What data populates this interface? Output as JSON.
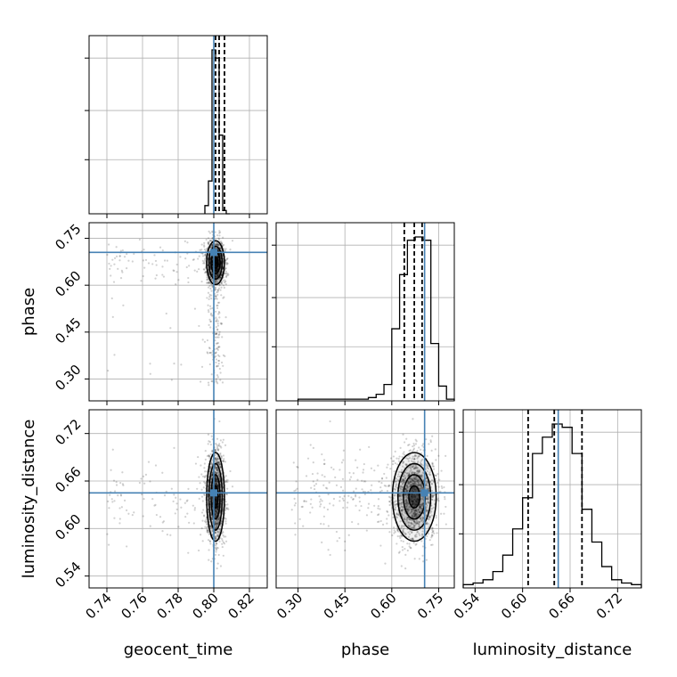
{
  "chart_data": {
    "type": "corner",
    "parameters": [
      "geocent_time",
      "phase",
      "luminosity_distance"
    ],
    "axis_labels": {
      "x": [
        "geocent_time",
        "phase",
        "luminosity_distance"
      ],
      "y": [
        "",
        "phase",
        "luminosity_distance"
      ]
    },
    "ranges": {
      "geocent_time": [
        0.73,
        0.83
      ],
      "phase": [
        0.23,
        0.8
      ],
      "luminosity_distance": [
        0.525,
        0.75
      ]
    },
    "ticks": {
      "geocent_time": [
        0.74,
        0.76,
        0.78,
        0.8,
        0.82
      ],
      "geocent_time_labels": [
        "0.74",
        "0.76",
        "0.78",
        "0.80",
        "0.82"
      ],
      "phase": [
        0.3,
        0.45,
        0.6,
        0.75
      ],
      "phase_labels": [
        "0.30",
        "0.45",
        "0.60",
        "0.75"
      ],
      "luminosity_distance": [
        0.54,
        0.6,
        0.66,
        0.72
      ],
      "luminosity_distance_labels": [
        "0.54",
        "0.60",
        "0.66",
        "0.72"
      ]
    },
    "truths": {
      "geocent_time": 0.8,
      "phase": 0.705,
      "luminosity_distance": 0.645
    },
    "quantiles": {
      "geocent_time": [
        0.801,
        0.803,
        0.806
      ],
      "phase": [
        0.64,
        0.672,
        0.697
      ],
      "luminosity_distance": [
        0.607,
        0.64,
        0.675
      ]
    },
    "histograms": {
      "geocent_time": {
        "edges": [
          0.795,
          0.797,
          0.799,
          0.801,
          0.803,
          0.805,
          0.807,
          0.809
        ],
        "counts": [
          0.05,
          0.2,
          1.0,
          0.95,
          0.48,
          0.02,
          0.0
        ]
      },
      "phase": {
        "edges": [
          0.3,
          0.325,
          0.35,
          0.375,
          0.4,
          0.425,
          0.45,
          0.475,
          0.5,
          0.525,
          0.55,
          0.575,
          0.6,
          0.625,
          0.65,
          0.675,
          0.7,
          0.725,
          0.75,
          0.775,
          0.8
        ],
        "counts": [
          0.01,
          0.01,
          0.01,
          0.01,
          0.01,
          0.01,
          0.01,
          0.01,
          0.01,
          0.02,
          0.04,
          0.1,
          0.44,
          0.77,
          0.98,
          1.0,
          0.98,
          0.35,
          0.09,
          0.01
        ]
      },
      "luminosity_distance": {
        "edges": [
          0.525,
          0.5375,
          0.55,
          0.5625,
          0.575,
          0.5875,
          0.6,
          0.6125,
          0.625,
          0.6375,
          0.65,
          0.6625,
          0.675,
          0.6875,
          0.7,
          0.7125,
          0.725,
          0.7375,
          0.75
        ],
        "counts": [
          0.02,
          0.03,
          0.05,
          0.1,
          0.2,
          0.36,
          0.55,
          0.82,
          0.92,
          1.0,
          0.98,
          0.82,
          0.48,
          0.28,
          0.13,
          0.05,
          0.03,
          0.02
        ]
      }
    },
    "posterior_center": {
      "geocent_time": 0.801,
      "phase": 0.672,
      "luminosity_distance": 0.64
    },
    "posterior_spread": {
      "geocent_time": 0.0025,
      "phase": 0.035,
      "luminosity_distance": 0.028
    },
    "grid": true,
    "colors": {
      "truth": "#4682b4",
      "histogram": "#000000",
      "contours": "#000000"
    }
  }
}
